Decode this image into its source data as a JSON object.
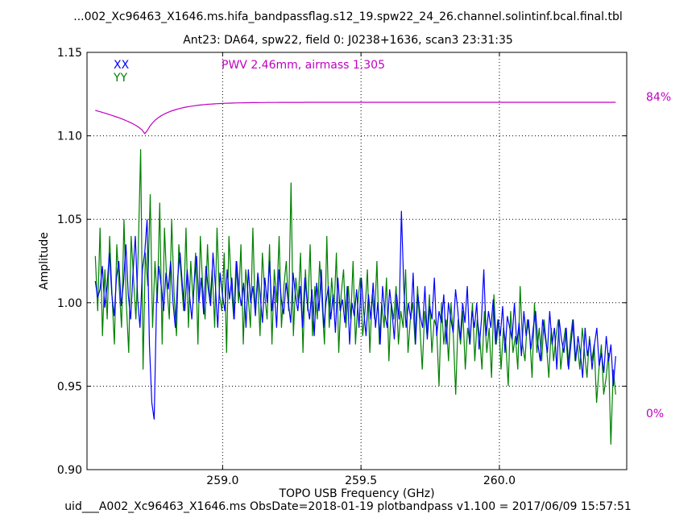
{
  "figure": {
    "title_line1": "...002_Xc96463_X1646.ms.hifa_bandpassflag.s12_19.spw22_24_26.channel.solintinf.bcal.final.tbl",
    "title_line2": "Ant23: DA64,  spw22,  field 0: J0238+1636,  scan3  23:31:35",
    "footer": "uid___A002_Xc96463_X1646.ms  ObsDate=2018-01-19   plotbandpass v1.100 = 2017/06/09 15:57:51",
    "atm_scale_high": "84%",
    "atm_scale_low": "0%"
  },
  "chart_data": {
    "type": "line",
    "title": "",
    "xlabel": "TOPO USB Frequency (GHz)",
    "ylabel": "Amplitude",
    "xlim": [
      258.51,
      260.46
    ],
    "ylim": [
      0.9,
      1.15
    ],
    "xticks": [
      259.0,
      259.5,
      260.0
    ],
    "xtick_labels": [
      "259.0",
      "259.5",
      "260.0"
    ],
    "yticks": [
      0.9,
      0.95,
      1.0,
      1.05,
      1.1,
      1.15
    ],
    "ytick_labels": [
      "0.90",
      "0.95",
      "1.00",
      "1.05",
      "1.10",
      "1.15"
    ],
    "grid": true,
    "legend_placement": "top-left",
    "annotation": "PWV 2.46mm, airmass 1.305",
    "x_start": 258.54,
    "x_end": 260.42,
    "series": [
      {
        "name": "XX",
        "color": "#0000ff",
        "values": [
          1.013,
          1.003,
          1.008,
          1.022,
          0.997,
          1.01,
          1.03,
          1.005,
          0.992,
          1.015,
          1.025,
          0.998,
          1.012,
          1.035,
          1.005,
          0.99,
          1.018,
          1.04,
          1.002,
          0.985,
          1.02,
          1.03,
          1.05,
          0.975,
          0.94,
          0.93,
          1.0,
          1.022,
          1.01,
          0.995,
          1.018,
          1.008,
          1.025,
          1.0,
          0.985,
          1.015,
          1.03,
          1.01,
          0.995,
          1.02,
          1.005,
          0.99,
          1.012,
          1.028,
          1.0,
          1.015,
          0.993,
          1.022,
          1.008,
          0.998,
          1.03,
          1.01,
          0.985,
          1.018,
          1.005,
          0.995,
          1.02,
          1.002,
          1.015,
          0.99,
          1.025,
          1.008,
          0.998,
          1.012,
          0.985,
          1.02,
          1.0,
          1.01,
          0.992,
          1.018,
          1.005,
          0.988,
          1.015,
          1.0,
          1.025,
          0.995,
          1.01,
          0.985,
          1.02,
          1.002,
          0.993,
          1.012,
          1.0,
          0.988,
          1.018,
          1.005,
          0.995,
          1.01,
          0.985,
          1.015,
          1.0,
          0.99,
          1.008,
          0.98,
          1.012,
          0.995,
          1.02,
          0.985,
          1.0,
          1.01,
          0.99,
          1.005,
          0.982,
          1.015,
          0.995,
          1.002,
          0.988,
          1.01,
          0.975,
          1.0,
          0.992,
          1.008,
          0.985,
          1.015,
          0.995,
          0.98,
          1.005,
          0.99,
          1.012,
          0.985,
          1.0,
          0.975,
          1.01,
          0.993,
          0.985,
          1.008,
          0.995,
          0.978,
          1.005,
          0.99,
          1.055,
          1.01,
          0.985,
          1.0,
          0.99,
          1.018,
          0.975,
          1.005,
          0.992,
          0.985,
          1.01,
          0.978,
          0.998,
          0.99,
          1.015,
          0.98,
          0.995,
          0.988,
          1.005,
          0.975,
          1.0,
          0.99,
          0.982,
          1.008,
          0.995,
          0.978,
          1.0,
          0.988,
          1.01,
          0.975,
          0.995,
          0.985,
          1.0,
          0.972,
          0.99,
          1.02,
          0.98,
          0.995,
          0.985,
          1.002,
          0.975,
          0.99,
          0.98,
          0.998,
          0.97,
          0.992,
          0.985,
          0.978,
          1.0,
          0.975,
          0.988,
          0.968,
          0.995,
          0.98,
          0.99,
          0.972,
          0.985,
          0.995,
          0.975,
          0.965,
          0.99,
          0.98,
          0.97,
          0.995,
          0.975,
          0.985,
          0.96,
          0.99,
          0.978,
          0.97,
          0.985,
          0.96,
          0.975,
          0.99,
          0.965,
          0.98,
          0.97,
          0.955,
          0.985,
          0.968,
          0.978,
          0.96,
          0.975,
          0.985,
          0.962,
          0.97,
          0.958,
          0.98,
          0.965,
          0.975,
          0.95,
          0.968
        ]
      },
      {
        "name": "YY",
        "color": "#008000",
        "values": [
          1.028,
          0.995,
          1.045,
          0.98,
          1.02,
          0.99,
          1.04,
          1.005,
          0.975,
          1.035,
          1.01,
          0.985,
          1.05,
          1.0,
          0.97,
          1.04,
          1.015,
          0.99,
          1.03,
          1.092,
          0.96,
          1.03,
          1.01,
          1.065,
          0.985,
          1.025,
          1.0,
          1.06,
          0.975,
          1.045,
          1.01,
          0.99,
          1.05,
          1.005,
          0.98,
          1.035,
          1.015,
          0.995,
          1.045,
          0.985,
          1.025,
          1.0,
          1.03,
          0.975,
          1.04,
          1.01,
          0.99,
          1.035,
          1.0,
          1.02,
          0.985,
          1.045,
          1.005,
          0.995,
          1.03,
          0.97,
          1.04,
          1.01,
          0.99,
          1.025,
          1.0,
          1.035,
          0.975,
          1.02,
          1.005,
          0.985,
          1.045,
          0.995,
          1.015,
          0.98,
          1.03,
          1.005,
          0.99,
          1.035,
          0.975,
          1.02,
          1.0,
          1.04,
          0.985,
          1.01,
          1.025,
          0.995,
          1.072,
          0.98,
          1.015,
          1.0,
          1.03,
          0.97,
          1.02,
          0.995,
          1.035,
          0.98,
          1.01,
          0.99,
          1.025,
          1.0,
          0.975,
          1.04,
          0.985,
          1.015,
          0.995,
          1.03,
          0.97,
          1.005,
          1.02,
          0.985,
          1.01,
          0.99,
          1.025,
          0.975,
          1.0,
          1.015,
          0.98,
          0.995,
          1.02,
          0.97,
          1.005,
          0.99,
          1.025,
          0.975,
          1.0,
          0.985,
          1.015,
          0.965,
          1.0,
          0.99,
          1.01,
          0.975,
          0.995,
          0.985,
          1.02,
          0.97,
          0.99,
          1.0,
          0.975,
          1.01,
          0.985,
          0.96,
          0.995,
          0.98,
          1.005,
          0.97,
          0.99,
          0.985,
          0.95,
          1.0,
          0.975,
          0.99,
          0.965,
          1.0,
          0.98,
          0.945,
          0.99,
          0.975,
          0.995,
          0.96,
          0.985,
          0.975,
          1.0,
          0.965,
          0.99,
          0.98,
          0.96,
          0.995,
          0.97,
          0.985,
          0.955,
          1.005,
          0.975,
          0.99,
          0.96,
          0.985,
          0.975,
          0.95,
          0.995,
          0.97,
          0.98,
          0.96,
          1.01,
          0.975,
          0.965,
          0.99,
          0.98,
          0.955,
          1.0,
          0.97,
          0.985,
          0.965,
          0.99,
          0.975,
          0.955,
          0.985,
          0.965,
          0.98,
          0.99,
          0.96,
          0.975,
          0.985,
          0.962,
          0.978,
          0.99,
          0.965,
          0.975,
          0.96,
          0.985,
          0.97,
          0.955,
          0.98,
          0.965,
          0.975,
          0.94,
          0.96,
          0.975,
          0.945,
          0.955,
          0.97,
          0.915,
          0.96,
          0.945
        ]
      },
      {
        "name": "atmospheric transmission",
        "color": "#c000c0",
        "scale_labels": [
          "0%",
          "84%"
        ],
        "dip_center": 258.72,
        "x_start": 258.54,
        "x_end": 260.42
      }
    ]
  }
}
